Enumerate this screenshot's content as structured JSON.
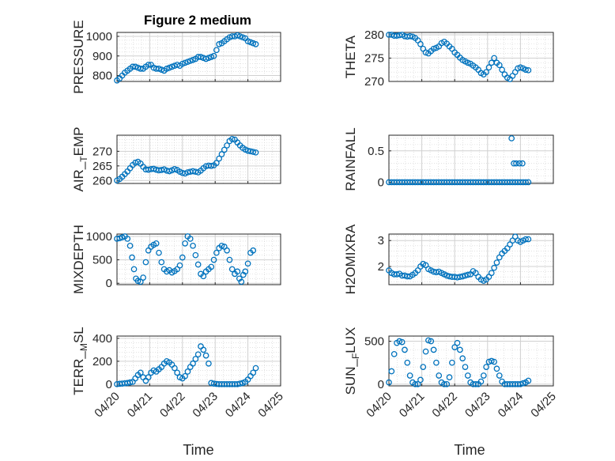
{
  "figure_title": "Figure 2 medium",
  "colors": {
    "marker": "#0072BD",
    "axis": "#262626",
    "grid": "#d0d0d0"
  },
  "chart_data": [
    {
      "type": "scatter",
      "ylabel": "PRESSURE",
      "ylim": [
        770,
        1020
      ],
      "yticks": [
        800,
        900,
        1000
      ],
      "yticklabels": [
        "800",
        "900",
        "1000"
      ],
      "xlim": [
        0,
        5
      ],
      "x": [
        0.0,
        0.08,
        0.16,
        0.24,
        0.32,
        0.4,
        0.48,
        0.56,
        0.64,
        0.72,
        0.8,
        0.88,
        0.96,
        1.04,
        1.12,
        1.2,
        1.28,
        1.36,
        1.44,
        1.52,
        1.6,
        1.68,
        1.76,
        1.84,
        1.92,
        2.0,
        2.08,
        2.16,
        2.24,
        2.32,
        2.4,
        2.48,
        2.56,
        2.64,
        2.72,
        2.8,
        2.88,
        2.96,
        3.04,
        3.12,
        3.2,
        3.28,
        3.36,
        3.44,
        3.52,
        3.6,
        3.68,
        3.76,
        3.84,
        3.92,
        4.0,
        4.08,
        4.16,
        4.24
      ],
      "y": [
        775,
        785,
        800,
        815,
        825,
        835,
        845,
        845,
        840,
        835,
        835,
        845,
        855,
        855,
        840,
        835,
        835,
        830,
        825,
        835,
        840,
        845,
        850,
        855,
        850,
        860,
        865,
        870,
        875,
        880,
        885,
        895,
        895,
        890,
        885,
        890,
        895,
        900,
        930,
        960,
        965,
        975,
        985,
        995,
        1000,
        1000,
        1005,
        1000,
        995,
        990,
        975,
        970,
        965,
        960
      ]
    },
    {
      "type": "scatter",
      "ylabel": "THETA",
      "ylim": [
        270,
        280.5
      ],
      "yticks": [
        270,
        275,
        280
      ],
      "yticklabels": [
        "270",
        "275",
        "280"
      ],
      "xlim": [
        0,
        5
      ],
      "x": [
        0.0,
        0.08,
        0.16,
        0.24,
        0.32,
        0.4,
        0.48,
        0.56,
        0.64,
        0.72,
        0.8,
        0.88,
        0.96,
        1.04,
        1.12,
        1.2,
        1.28,
        1.36,
        1.44,
        1.52,
        1.6,
        1.68,
        1.76,
        1.84,
        1.92,
        2.0,
        2.08,
        2.16,
        2.24,
        2.32,
        2.4,
        2.48,
        2.56,
        2.64,
        2.72,
        2.8,
        2.88,
        2.96,
        3.04,
        3.12,
        3.2,
        3.28,
        3.36,
        3.44,
        3.52,
        3.6,
        3.68,
        3.76,
        3.84,
        3.92,
        4.0,
        4.08,
        4.16,
        4.24
      ],
      "y": [
        280,
        280,
        279.8,
        279.8,
        279.9,
        280,
        279.7,
        279.6,
        279.7,
        279.6,
        279.3,
        278.8,
        278,
        277,
        276.2,
        276,
        276.5,
        277,
        277.2,
        277.5,
        278.2,
        278.5,
        278.1,
        277.5,
        277,
        276.2,
        275.7,
        275.1,
        274.6,
        274.3,
        274,
        273.8,
        273.4,
        273,
        272.5,
        271.8,
        271.5,
        272,
        273,
        274,
        275,
        274,
        273.5,
        272.5,
        271.5,
        270.8,
        270.5,
        271.2,
        272,
        272.8,
        273,
        272.8,
        272.5,
        272.4
      ]
    },
    {
      "type": "scatter",
      "ylabel": "AIR_TEMP",
      "ylim": [
        259,
        275.5
      ],
      "yticks": [
        260,
        265,
        270
      ],
      "yticklabels": [
        "260",
        "265",
        "270"
      ],
      "xlim": [
        0,
        5
      ],
      "x": [
        0.0,
        0.08,
        0.16,
        0.24,
        0.32,
        0.4,
        0.48,
        0.56,
        0.64,
        0.72,
        0.8,
        0.88,
        0.96,
        1.04,
        1.12,
        1.2,
        1.28,
        1.36,
        1.44,
        1.52,
        1.6,
        1.68,
        1.76,
        1.84,
        1.92,
        2.0,
        2.08,
        2.16,
        2.24,
        2.32,
        2.4,
        2.48,
        2.56,
        2.64,
        2.72,
        2.8,
        2.88,
        2.96,
        3.04,
        3.12,
        3.2,
        3.28,
        3.36,
        3.44,
        3.52,
        3.6,
        3.68,
        3.76,
        3.84,
        3.92,
        4.0,
        4.08,
        4.16,
        4.24
      ],
      "y": [
        260,
        260.5,
        261.3,
        262.2,
        263.1,
        264.2,
        265.3,
        266.1,
        266.4,
        265.8,
        264.7,
        263.8,
        263.7,
        263.9,
        264,
        263.7,
        263.5,
        263.6,
        263.8,
        263.4,
        263.2,
        263.5,
        263.9,
        263.6,
        263,
        262.6,
        262.4,
        262.8,
        263,
        263.2,
        263,
        262.8,
        263.4,
        264.2,
        264.9,
        265.1,
        265,
        265.2,
        266,
        267.5,
        269,
        270.5,
        272,
        273.5,
        274.2,
        274,
        273,
        272,
        271.2,
        270.6,
        270.2,
        270,
        269.8,
        269.6
      ]
    },
    {
      "type": "scatter",
      "ylabel": "RAINFALL",
      "ylim": [
        -0.02,
        0.75
      ],
      "yticks": [
        0,
        0.5
      ],
      "yticklabels": [
        "0",
        "0.5"
      ],
      "xlim": [
        0,
        5
      ],
      "x": [
        0.0,
        0.08,
        0.16,
        0.24,
        0.32,
        0.4,
        0.48,
        0.56,
        0.64,
        0.72,
        0.8,
        0.88,
        0.96,
        1.04,
        1.12,
        1.2,
        1.28,
        1.36,
        1.44,
        1.52,
        1.6,
        1.68,
        1.76,
        1.84,
        1.92,
        2.0,
        2.08,
        2.16,
        2.24,
        2.32,
        2.4,
        2.48,
        2.56,
        2.64,
        2.72,
        2.8,
        2.88,
        2.96,
        3.04,
        3.12,
        3.2,
        3.28,
        3.36,
        3.44,
        3.52,
        3.6,
        3.68,
        3.76,
        3.84,
        3.92,
        4.0,
        4.08,
        4.16,
        4.24,
        3.73,
        3.8,
        3.87,
        3.97,
        4.06
      ],
      "y": [
        0,
        0,
        0,
        0,
        0,
        0,
        0,
        0,
        0,
        0,
        0,
        0,
        0,
        0,
        0,
        0,
        0,
        0,
        0,
        0,
        0,
        0,
        0,
        0,
        0,
        0,
        0,
        0,
        0,
        0,
        0,
        0,
        0,
        0,
        0,
        0,
        0,
        0,
        0,
        0,
        0,
        0,
        0,
        0,
        0,
        0,
        0,
        0,
        0,
        0,
        0,
        0,
        0,
        0,
        0.7,
        0.3,
        0.3,
        0.3,
        0.3
      ]
    },
    {
      "type": "scatter",
      "ylabel": "MIXDEPTH",
      "ylim": [
        -30,
        1050
      ],
      "yticks": [
        0,
        500,
        1000
      ],
      "yticklabels": [
        "0",
        "500",
        "1000"
      ],
      "xlim": [
        0,
        5
      ],
      "x": [
        0.0,
        0.08,
        0.16,
        0.24,
        0.32,
        0.4,
        0.46,
        0.52,
        0.58,
        0.64,
        0.72,
        0.8,
        0.88,
        0.96,
        1.04,
        1.12,
        1.2,
        1.28,
        1.36,
        1.44,
        1.52,
        1.6,
        1.68,
        1.76,
        1.84,
        1.92,
        2.0,
        2.08,
        2.16,
        2.24,
        2.32,
        2.4,
        2.48,
        2.56,
        2.64,
        2.72,
        2.8,
        2.88,
        2.96,
        3.04,
        3.12,
        3.2,
        3.28,
        3.36,
        3.44,
        3.52,
        3.6,
        3.68,
        3.74,
        3.8,
        3.86,
        3.92,
        4.0,
        4.08,
        4.16
      ],
      "y": [
        950,
        960,
        980,
        1000,
        950,
        800,
        550,
        300,
        100,
        50,
        30,
        120,
        450,
        700,
        780,
        820,
        850,
        650,
        450,
        300,
        250,
        280,
        230,
        260,
        300,
        380,
        550,
        850,
        1000,
        950,
        800,
        600,
        400,
        200,
        150,
        250,
        300,
        350,
        500,
        650,
        750,
        800,
        780,
        700,
        500,
        300,
        200,
        250,
        100,
        30,
        180,
        250,
        420,
        650,
        700
      ]
    },
    {
      "type": "scatter",
      "ylabel": "H2OMIXRA",
      "ylim": [
        1.3,
        3.25
      ],
      "yticks": [
        2,
        3
      ],
      "yticklabels": [
        "2",
        "3"
      ],
      "xlim": [
        0,
        5
      ],
      "x": [
        0.0,
        0.08,
        0.16,
        0.24,
        0.32,
        0.4,
        0.48,
        0.56,
        0.64,
        0.72,
        0.8,
        0.88,
        0.96,
        1.04,
        1.12,
        1.2,
        1.28,
        1.36,
        1.44,
        1.52,
        1.6,
        1.68,
        1.76,
        1.84,
        1.92,
        2.0,
        2.08,
        2.16,
        2.24,
        2.32,
        2.4,
        2.48,
        2.56,
        2.64,
        2.72,
        2.8,
        2.88,
        2.96,
        3.04,
        3.12,
        3.2,
        3.28,
        3.36,
        3.44,
        3.52,
        3.6,
        3.68,
        3.76,
        3.84,
        3.92,
        4.0,
        4.08,
        4.16,
        4.24
      ],
      "y": [
        1.85,
        1.75,
        1.7,
        1.7,
        1.72,
        1.65,
        1.65,
        1.62,
        1.62,
        1.68,
        1.75,
        1.85,
        2,
        2.1,
        2.05,
        1.9,
        1.85,
        1.8,
        1.78,
        1.8,
        1.75,
        1.7,
        1.65,
        1.62,
        1.6,
        1.6,
        1.58,
        1.6,
        1.62,
        1.65,
        1.68,
        1.7,
        1.82,
        1.75,
        1.6,
        1.5,
        1.45,
        1.5,
        1.6,
        1.75,
        1.95,
        2.15,
        2.35,
        2.5,
        2.6,
        2.7,
        2.85,
        3.0,
        3.15,
        3.0,
        2.95,
        3.0,
        3.05,
        3.05
      ]
    },
    {
      "type": "scatter",
      "ylabel": "TERR_MSL",
      "ylim": [
        -15,
        420
      ],
      "yticks": [
        0,
        200,
        400
      ],
      "yticklabels": [
        "0",
        "200",
        "400"
      ],
      "xlim": [
        0,
        5
      ],
      "x": [
        0.0,
        0.08,
        0.16,
        0.24,
        0.32,
        0.4,
        0.48,
        0.56,
        0.64,
        0.72,
        0.8,
        0.88,
        0.96,
        1.04,
        1.12,
        1.2,
        1.28,
        1.36,
        1.44,
        1.52,
        1.6,
        1.68,
        1.76,
        1.84,
        1.92,
        2.0,
        2.08,
        2.16,
        2.24,
        2.32,
        2.4,
        2.48,
        2.56,
        2.64,
        2.72,
        2.8,
        2.88,
        2.96,
        3.04,
        3.12,
        3.2,
        3.28,
        3.36,
        3.44,
        3.52,
        3.6,
        3.68,
        3.76,
        3.84,
        3.92,
        4.0,
        4.08,
        4.16,
        4.24
      ],
      "y": [
        0,
        3,
        5,
        8,
        10,
        15,
        20,
        50,
        80,
        100,
        60,
        30,
        60,
        100,
        120,
        110,
        130,
        150,
        180,
        200,
        190,
        170,
        140,
        100,
        60,
        50,
        70,
        110,
        150,
        180,
        220,
        260,
        330,
        300,
        250,
        180,
        10,
        5,
        2,
        0,
        0,
        0,
        0,
        0,
        0,
        0,
        0,
        5,
        10,
        20,
        40,
        70,
        100,
        140
      ]
    },
    {
      "type": "scatter",
      "ylabel": "SUN_FLUX",
      "ylim": [
        -20,
        560
      ],
      "yticks": [
        0,
        500
      ],
      "yticklabels": [
        "0",
        "500"
      ],
      "xlim": [
        0,
        5
      ],
      "x": [
        0.0,
        0.08,
        0.16,
        0.24,
        0.32,
        0.4,
        0.48,
        0.56,
        0.64,
        0.72,
        0.8,
        0.88,
        0.96,
        1.04,
        1.12,
        1.2,
        1.28,
        1.36,
        1.44,
        1.52,
        1.6,
        1.68,
        1.76,
        1.84,
        1.92,
        2.0,
        2.08,
        2.16,
        2.24,
        2.32,
        2.4,
        2.48,
        2.56,
        2.64,
        2.72,
        2.8,
        2.88,
        2.96,
        3.04,
        3.12,
        3.2,
        3.28,
        3.36,
        3.44,
        3.52,
        3.6,
        3.68,
        3.76,
        3.84,
        3.92,
        4.0,
        4.08,
        4.16,
        4.24
      ],
      "y": [
        20,
        150,
        350,
        480,
        500,
        490,
        400,
        250,
        100,
        20,
        0,
        0,
        50,
        200,
        380,
        510,
        500,
        400,
        250,
        100,
        20,
        0,
        0,
        80,
        250,
        430,
        480,
        400,
        300,
        200,
        100,
        20,
        0,
        0,
        0,
        30,
        100,
        200,
        260,
        270,
        260,
        180,
        100,
        30,
        0,
        0,
        0,
        0,
        0,
        0,
        0,
        10,
        20,
        40
      ]
    }
  ],
  "shared_axes": {
    "xticklabels": [
      "04/20",
      "04/21",
      "04/22",
      "04/23",
      "04/24",
      "04/25"
    ],
    "xlabel": "Time"
  }
}
